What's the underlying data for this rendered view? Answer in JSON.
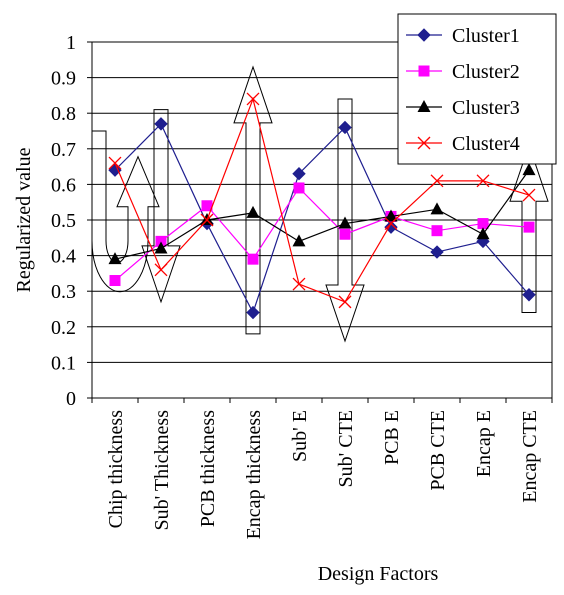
{
  "chart_data": {
    "type": "line",
    "title": "",
    "xlabel": "Design Factors",
    "ylabel": "Regularized value",
    "ylim": [
      0,
      1
    ],
    "y_ticks": [
      "0",
      "0.1",
      "0.2",
      "0.3",
      "0.4",
      "0.5",
      "0.6",
      "0.7",
      "0.8",
      "0.9",
      "1"
    ],
    "grid": "horizontal",
    "legend_position": "top-right",
    "categories": [
      "Chip thickness",
      "Sub' Thickness",
      "PCB thickness",
      "Encap thickness",
      "Sub' E",
      "Sub' CTE",
      "PCB E",
      "PCB CTE",
      "Encap E",
      "Encap CTE"
    ],
    "series": [
      {
        "name": "Cluster1",
        "color": "#1f1f8f",
        "marker": "diamond",
        "values": [
          0.64,
          0.77,
          0.49,
          0.24,
          0.63,
          0.76,
          0.48,
          0.41,
          0.44,
          0.29
        ]
      },
      {
        "name": "Cluster2",
        "color": "#ff00ff",
        "marker": "square",
        "values": [
          0.33,
          0.44,
          0.54,
          0.39,
          0.59,
          0.46,
          0.51,
          0.47,
          0.49,
          0.48
        ]
      },
      {
        "name": "Cluster3",
        "color": "#000000",
        "marker": "triangle",
        "values": [
          0.39,
          0.42,
          0.5,
          0.52,
          0.44,
          0.49,
          0.51,
          0.53,
          0.46,
          0.64
        ]
      },
      {
        "name": "Cluster4",
        "color": "#ff0000",
        "marker": "x",
        "values": [
          0.66,
          0.36,
          0.5,
          0.84,
          0.32,
          0.27,
          0.49,
          0.61,
          0.61,
          0.57
        ]
      }
    ],
    "annotations": [
      {
        "type": "u-turn-arrow",
        "category": "Chip thickness",
        "from": 0.75,
        "to": 0.38
      },
      {
        "type": "arrow-down",
        "category": "Sub' Thickness",
        "from": 0.81,
        "to": 0.27
      },
      {
        "type": "arrow-up",
        "category": "Encap thickness",
        "from": 0.18,
        "to": 0.93
      },
      {
        "type": "arrow-down",
        "category": "Sub' CTE",
        "from": 0.84,
        "to": 0.16
      },
      {
        "type": "arrow-up",
        "category": "Encap CTE",
        "from": 0.24,
        "to": 0.71
      }
    ]
  }
}
